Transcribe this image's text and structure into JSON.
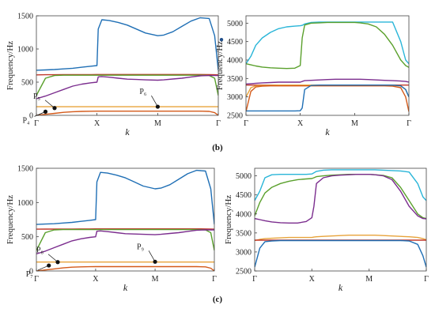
{
  "captions": [
    "(b)",
    "(c)"
  ],
  "chart_data": [
    {
      "type": "line",
      "ylabel": "Frequency/Hz",
      "xlabel": "k",
      "ylim": [
        0,
        1500
      ],
      "yticks": [
        0,
        500,
        1000,
        1500
      ],
      "xticks": [
        "Γ",
        "X",
        "M",
        "Γ"
      ],
      "x": [
        0,
        0.05,
        0.1,
        0.15,
        0.2,
        0.25,
        0.3,
        0.333,
        0.34,
        0.36,
        0.4,
        0.45,
        0.5,
        0.55,
        0.6,
        0.667,
        0.7,
        0.75,
        0.8,
        0.85,
        0.9,
        0.95,
        0.98,
        1.0
      ],
      "series": [
        {
          "color": "#1f6fb5",
          "values": [
            680,
            685,
            690,
            700,
            710,
            725,
            740,
            750,
            1300,
            1440,
            1430,
            1400,
            1360,
            1300,
            1240,
            1200,
            1210,
            1260,
            1340,
            1420,
            1470,
            1460,
            1200,
            680
          ]
        },
        {
          "color": "#c0392b",
          "values": [
            610,
            612,
            612,
            613,
            613,
            614,
            614,
            615,
            615,
            615,
            615,
            615,
            615,
            615,
            615,
            615,
            615,
            615,
            615,
            615,
            615,
            614,
            612,
            610
          ]
        },
        {
          "color": "#5aa02c",
          "values": [
            300,
            560,
            600,
            605,
            605,
            605,
            605,
            605,
            605,
            605,
            605,
            605,
            605,
            605,
            605,
            605,
            605,
            605,
            605,
            605,
            605,
            600,
            560,
            300
          ]
        },
        {
          "color": "#7b2d8e",
          "values": [
            250,
            290,
            340,
            390,
            440,
            470,
            490,
            500,
            580,
            585,
            575,
            560,
            545,
            540,
            535,
            530,
            535,
            548,
            560,
            578,
            595,
            600,
            600,
            600
          ]
        },
        {
          "color": "#e8a33a",
          "values": [
            130,
            130,
            130,
            130,
            130,
            130,
            130,
            130,
            130,
            130,
            130,
            130,
            130,
            130,
            130,
            130,
            130,
            130,
            130,
            130,
            130,
            130,
            130,
            130
          ]
        },
        {
          "color": "#d45a1a",
          "values": [
            0,
            15,
            30,
            45,
            55,
            60,
            62,
            63,
            63,
            63,
            63,
            63,
            63,
            63,
            63,
            63,
            63,
            63,
            63,
            63,
            63,
            60,
            40,
            0
          ]
        }
      ],
      "annotations": [
        {
          "label": "P₅",
          "x": 0.1,
          "y": 110
        },
        {
          "label": "P₄",
          "x": 0.05,
          "y": 55
        },
        {
          "label": "P₆",
          "x": 0.667,
          "y": 130
        }
      ],
      "side_marker": {
        "x": 1.0,
        "y": 1140
      }
    },
    {
      "type": "line",
      "ylabel": "Frequency/Hz",
      "xlabel": "k",
      "ylim": [
        2500,
        5200
      ],
      "yticks": [
        2500,
        3000,
        3500,
        4000,
        4500,
        5000
      ],
      "xticks": [
        "Γ",
        "X",
        "M",
        "Γ"
      ],
      "x": [
        0,
        0.03,
        0.06,
        0.1,
        0.15,
        0.2,
        0.25,
        0.3,
        0.333,
        0.345,
        0.36,
        0.4,
        0.45,
        0.5,
        0.55,
        0.6,
        0.667,
        0.7,
        0.75,
        0.8,
        0.85,
        0.9,
        0.95,
        0.98,
        1.0
      ],
      "series": [
        {
          "color": "#29b5d8",
          "values": [
            3900,
            4100,
            4400,
            4600,
            4750,
            4850,
            4900,
            4920,
            4930,
            4940,
            4980,
            5020,
            5030,
            5030,
            5030,
            5030,
            5030,
            5030,
            5030,
            5030,
            5030,
            5030,
            4500,
            4000,
            3900
          ]
        },
        {
          "color": "#5aa02c",
          "values": [
            3900,
            3870,
            3840,
            3810,
            3790,
            3780,
            3770,
            3780,
            3850,
            4600,
            4950,
            5000,
            5010,
            5020,
            5020,
            5020,
            5020,
            5010,
            4980,
            4900,
            4700,
            4400,
            4000,
            3850,
            3800
          ]
        },
        {
          "color": "#7b2d8e",
          "values": [
            3350,
            3360,
            3370,
            3380,
            3390,
            3400,
            3400,
            3400,
            3400,
            3420,
            3440,
            3450,
            3460,
            3470,
            3480,
            3480,
            3480,
            3480,
            3470,
            3460,
            3450,
            3440,
            3430,
            3420,
            3400
          ]
        },
        {
          "color": "#c0392b",
          "values": [
            3320,
            3320,
            3320,
            3320,
            3320,
            3320,
            3320,
            3320,
            3320,
            3320,
            3320,
            3320,
            3320,
            3320,
            3320,
            3320,
            3320,
            3320,
            3320,
            3320,
            3320,
            3320,
            3320,
            3320,
            3320
          ]
        },
        {
          "color": "#e8a33a",
          "values": [
            3000,
            3250,
            3300,
            3310,
            3315,
            3320,
            3320,
            3320,
            3320,
            3320,
            3320,
            3320,
            3320,
            3320,
            3320,
            3320,
            3320,
            3320,
            3320,
            3320,
            3320,
            3315,
            3300,
            3200,
            3000
          ]
        },
        {
          "color": "#d45a1a",
          "values": [
            2600,
            3150,
            3270,
            3290,
            3300,
            3300,
            3300,
            3300,
            3300,
            3300,
            3300,
            3300,
            3300,
            3300,
            3300,
            3300,
            3300,
            3300,
            3300,
            3300,
            3300,
            3290,
            3250,
            3000,
            2600
          ]
        },
        {
          "color": "#1f6fb5",
          "values": [
            2620,
            2620,
            2620,
            2620,
            2620,
            2620,
            2620,
            2620,
            2625,
            2700,
            3200,
            3310,
            3320,
            3320,
            3320,
            3320,
            3320,
            3320,
            3320,
            3320,
            3320,
            3320,
            3300,
            3200,
            3000
          ]
        }
      ]
    },
    {
      "type": "line",
      "ylabel": "Frequency/Hz",
      "xlabel": "k",
      "ylim": [
        0,
        1500
      ],
      "yticks": [
        0,
        500,
        1000,
        1500
      ],
      "xticks": [
        "Γ",
        "X",
        "M",
        "Γ"
      ],
      "x": [
        0,
        0.05,
        0.1,
        0.15,
        0.2,
        0.25,
        0.3,
        0.333,
        0.34,
        0.36,
        0.4,
        0.45,
        0.5,
        0.55,
        0.6,
        0.667,
        0.7,
        0.75,
        0.8,
        0.85,
        0.9,
        0.95,
        0.98,
        1.0
      ],
      "series": [
        {
          "color": "#1f6fb5",
          "values": [
            680,
            685,
            690,
            700,
            710,
            725,
            740,
            750,
            1300,
            1440,
            1430,
            1400,
            1360,
            1300,
            1240,
            1200,
            1210,
            1260,
            1340,
            1420,
            1470,
            1460,
            1200,
            680
          ]
        },
        {
          "color": "#c0392b",
          "values": [
            610,
            612,
            612,
            613,
            613,
            614,
            614,
            615,
            615,
            615,
            615,
            615,
            615,
            615,
            615,
            615,
            615,
            615,
            615,
            615,
            615,
            614,
            612,
            610
          ]
        },
        {
          "color": "#5aa02c",
          "values": [
            300,
            560,
            600,
            605,
            605,
            605,
            605,
            605,
            605,
            605,
            605,
            605,
            605,
            605,
            605,
            605,
            605,
            605,
            605,
            605,
            605,
            600,
            560,
            300
          ]
        },
        {
          "color": "#7b2d8e",
          "values": [
            250,
            290,
            340,
            390,
            440,
            470,
            490,
            500,
            580,
            585,
            575,
            560,
            545,
            540,
            535,
            530,
            535,
            548,
            560,
            578,
            595,
            600,
            600,
            600
          ]
        },
        {
          "color": "#e8a33a",
          "values": [
            130,
            130,
            130,
            130,
            130,
            130,
            130,
            130,
            130,
            130,
            130,
            130,
            130,
            130,
            130,
            130,
            130,
            130,
            130,
            130,
            130,
            130,
            130,
            130
          ]
        },
        {
          "color": "#d45a1a",
          "values": [
            0,
            15,
            30,
            45,
            55,
            60,
            62,
            63,
            63,
            63,
            63,
            63,
            63,
            63,
            63,
            63,
            63,
            63,
            63,
            63,
            63,
            60,
            40,
            0
          ]
        }
      ],
      "annotations": [
        {
          "label": "P₈",
          "x": 0.12,
          "y": 130
        },
        {
          "label": "P₇",
          "x": 0.07,
          "y": 80
        },
        {
          "label": "P₉",
          "x": 0.667,
          "y": 135
        }
      ]
    },
    {
      "type": "line",
      "ylabel": "Frequency/Hz",
      "xlabel": "k",
      "ylim": [
        2500,
        5200
      ],
      "yticks": [
        2500,
        3000,
        3500,
        4000,
        4500,
        5000
      ],
      "xticks": [
        "Γ",
        "X",
        "M",
        "Γ"
      ],
      "x": [
        0,
        0.03,
        0.06,
        0.1,
        0.15,
        0.2,
        0.25,
        0.3,
        0.333,
        0.345,
        0.36,
        0.4,
        0.45,
        0.5,
        0.55,
        0.6,
        0.667,
        0.7,
        0.75,
        0.8,
        0.85,
        0.9,
        0.95,
        0.98,
        1.0
      ],
      "series": [
        {
          "color": "#29b5d8",
          "values": [
            4350,
            4600,
            4950,
            5030,
            5040,
            5040,
            5040,
            5040,
            5050,
            5080,
            5120,
            5150,
            5160,
            5160,
            5160,
            5160,
            5160,
            5160,
            5150,
            5140,
            5130,
            5100,
            4800,
            4450,
            4350
          ]
        },
        {
          "color": "#5aa02c",
          "values": [
            3950,
            4300,
            4550,
            4700,
            4800,
            4860,
            4900,
            4920,
            4930,
            4950,
            4980,
            5000,
            5020,
            5030,
            5040,
            5040,
            5040,
            5030,
            5010,
            4950,
            4700,
            4350,
            4000,
            3900,
            3880
          ]
        },
        {
          "color": "#7b2d8e",
          "values": [
            3880,
            3850,
            3820,
            3790,
            3770,
            3760,
            3760,
            3800,
            3900,
            4200,
            4800,
            4950,
            5000,
            5020,
            5030,
            5040,
            5040,
            5030,
            5000,
            4900,
            4600,
            4200,
            3950,
            3880,
            3870
          ]
        },
        {
          "color": "#e8a33a",
          "values": [
            3300,
            3330,
            3350,
            3360,
            3370,
            3380,
            3380,
            3380,
            3380,
            3390,
            3400,
            3410,
            3420,
            3430,
            3440,
            3440,
            3440,
            3440,
            3430,
            3420,
            3410,
            3400,
            3380,
            3350,
            3320
          ]
        },
        {
          "color": "#c0392b",
          "values": [
            3310,
            3310,
            3310,
            3310,
            3310,
            3310,
            3310,
            3310,
            3310,
            3310,
            3310,
            3310,
            3310,
            3310,
            3310,
            3310,
            3310,
            3310,
            3310,
            3310,
            3310,
            3310,
            3310,
            3310,
            3310
          ]
        },
        {
          "color": "#1f6fb5",
          "values": [
            2600,
            3100,
            3270,
            3290,
            3300,
            3300,
            3300,
            3300,
            3300,
            3300,
            3300,
            3300,
            3300,
            3300,
            3300,
            3300,
            3300,
            3300,
            3300,
            3300,
            3300,
            3290,
            3200,
            2900,
            2600
          ]
        }
      ]
    }
  ]
}
